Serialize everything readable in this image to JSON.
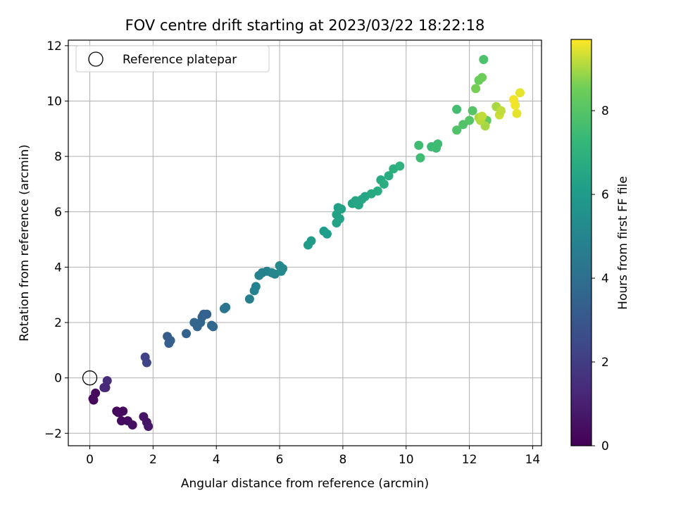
{
  "chart_data": {
    "type": "scatter",
    "title": "FOV centre drift starting at 2023/03/22 18:22:18",
    "xlabel": "Angular distance from reference (arcmin)",
    "ylabel": "Rotation from reference (arcmin)",
    "xlim": [
      -0.68,
      14.28
    ],
    "ylim": [
      -2.45,
      12.2
    ],
    "xticks": [
      0,
      2,
      4,
      6,
      8,
      10,
      12,
      14
    ],
    "yticks": [
      -2,
      0,
      2,
      4,
      6,
      8,
      10,
      12
    ],
    "grid": true,
    "legend": {
      "position": "top-left",
      "entries": [
        "Reference platepar"
      ]
    },
    "reference": {
      "x": 0,
      "y": 0
    },
    "colorbar": {
      "label": "Hours from first FF file",
      "colormap": "viridis",
      "range": [
        0,
        9.7
      ],
      "ticks": [
        0,
        2,
        4,
        6,
        8
      ]
    },
    "x": [
      0.12,
      0.18,
      0.1,
      0.45,
      0.55,
      0.5,
      0.85,
      0.95,
      1.05,
      1.0,
      0.9,
      1.2,
      1.35,
      1.7,
      1.8,
      1.85,
      1.75,
      1.8,
      2.5,
      2.55,
      2.45,
      3.05,
      3.3,
      3.4,
      3.5,
      3.6,
      3.55,
      3.7,
      3.85,
      3.9,
      4.25,
      4.3,
      5.05,
      5.2,
      5.25,
      5.35,
      5.45,
      5.6,
      5.75,
      5.85,
      6.0,
      6.05,
      6.1,
      6.9,
      7.0,
      7.4,
      7.5,
      7.8,
      7.85,
      7.9,
      7.8,
      7.95,
      8.3,
      8.4,
      8.5,
      8.6,
      8.7,
      8.9,
      9.1,
      9.2,
      9.3,
      9.45,
      9.6,
      9.8,
      10.4,
      10.45,
      10.8,
      10.95,
      11.0,
      11.6,
      11.6,
      11.8,
      12.0,
      12.1,
      12.2,
      12.3,
      12.4,
      12.45,
      12.55,
      12.5,
      12.3,
      12.35,
      12.4,
      12.85,
      12.95,
      13.0,
      13.4,
      13.45,
      13.5,
      13.6
    ],
    "y": [
      -0.8,
      -0.55,
      -0.75,
      -0.35,
      -0.1,
      -0.35,
      -1.2,
      -1.25,
      -1.2,
      -1.55,
      -1.25,
      -1.55,
      -1.7,
      -1.4,
      -1.6,
      -1.75,
      0.75,
      0.55,
      1.25,
      1.35,
      1.5,
      1.6,
      2.0,
      1.85,
      2.0,
      2.3,
      2.2,
      2.3,
      1.9,
      1.85,
      2.5,
      2.55,
      2.85,
      3.15,
      3.3,
      3.7,
      3.8,
      3.85,
      3.8,
      3.75,
      4.05,
      3.85,
      3.95,
      4.8,
      4.95,
      5.3,
      5.2,
      5.6,
      6.15,
      5.75,
      5.9,
      6.1,
      6.3,
      6.4,
      6.25,
      6.45,
      6.55,
      6.65,
      6.75,
      7.15,
      7.0,
      7.3,
      7.55,
      7.65,
      8.4,
      7.95,
      8.35,
      8.3,
      8.45,
      8.95,
      9.7,
      9.15,
      9.3,
      9.65,
      10.45,
      10.75,
      10.85,
      11.5,
      9.3,
      9.1,
      9.4,
      9.3,
      9.45,
      9.8,
      9.5,
      9.65,
      10.05,
      9.85,
      9.55,
      10.3
    ],
    "hours": [
      0.2,
      0.3,
      0.3,
      1.2,
      1.4,
      1.3,
      0.2,
      0.3,
      0.3,
      0.4,
      0.3,
      0.4,
      0.5,
      0.6,
      0.6,
      0.7,
      2.2,
      2.3,
      3.3,
      3.3,
      3.2,
      3.5,
      3.6,
      3.6,
      3.6,
      3.4,
      3.5,
      3.4,
      3.7,
      3.7,
      4.3,
      4.3,
      4.7,
      4.8,
      4.8,
      4.9,
      4.9,
      4.8,
      5.0,
      5.0,
      5.1,
      5.1,
      5.1,
      6.0,
      6.0,
      6.1,
      6.1,
      6.3,
      6.2,
      6.3,
      6.3,
      6.3,
      6.4,
      6.5,
      6.5,
      6.5,
      6.5,
      6.6,
      6.7,
      6.6,
      6.8,
      6.7,
      6.9,
      7.0,
      7.5,
      7.5,
      7.4,
      7.5,
      7.5,
      7.9,
      7.6,
      7.9,
      8.0,
      8.0,
      8.6,
      8.4,
      8.5,
      7.8,
      8.3,
      9.0,
      9.0,
      9.1,
      9.2,
      9.0,
      9.3,
      9.2,
      9.6,
      9.6,
      9.5,
      9.5
    ]
  }
}
